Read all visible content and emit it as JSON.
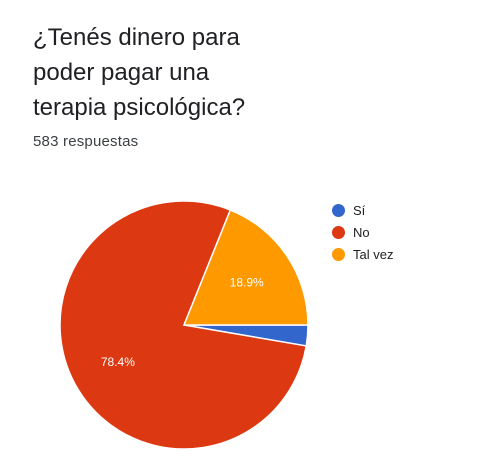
{
  "question": {
    "line1": "¿Tenés dinero para",
    "line2": "poder pagar una",
    "line3": "terapia psicológica?"
  },
  "response_count": "583 respuestas",
  "colors": {
    "si": "#3366cc",
    "no": "#dc3912",
    "tal_vez": "#ff9900"
  },
  "chart_data": {
    "type": "pie",
    "title": "¿Tenés dinero para poder pagar una terapia psicológica?",
    "categories": [
      "Sí",
      "No",
      "Tal vez"
    ],
    "values": [
      2.7,
      78.4,
      18.9
    ],
    "data_labels": [
      "",
      "78.4%",
      "18.9%"
    ],
    "legend_position": "right"
  }
}
